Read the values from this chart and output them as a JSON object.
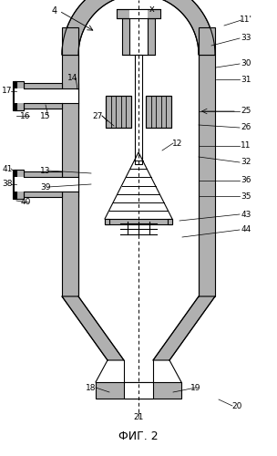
{
  "title": "ФИГ. 2",
  "bg_color": "#ffffff",
  "hatching_color": "#b0b0b0",
  "line_color": "#000000",
  "fig_width": 3.04,
  "fig_height": 5.0,
  "dpi": 100
}
